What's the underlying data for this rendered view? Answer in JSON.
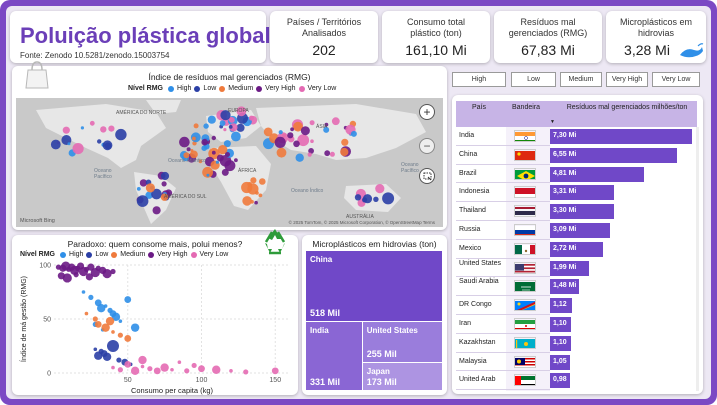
{
  "header": {
    "title": "Poluição plástica global",
    "source": "Fonte: Zenodo 10.5281/zenodo.15003754"
  },
  "kpis": [
    {
      "label": "Países / Territórios Analisados",
      "value": "202"
    },
    {
      "label": "Consumo total plástico (ton)",
      "value": "161,10 Mi"
    },
    {
      "label": "Resíduos mal gerenciados (RMG)",
      "value": "67,83 Mi"
    },
    {
      "label": "Microplásticos em hidrovias",
      "value": "3,28 Mi"
    }
  ],
  "colors": {
    "high": "#2f8fe8",
    "low": "#2b3fa6",
    "medium": "#ef7a3c",
    "very_high": "#6b1a85",
    "very_low": "#e46ab3",
    "accent": "#7b49c4",
    "bar": "#7048c8"
  },
  "map_panel": {
    "title": "Índice de resíduos mal gerenciados (RMG)",
    "legend_title": "Nível RMG",
    "legend": [
      "High",
      "Low",
      "Medium",
      "Very High",
      "Very Low"
    ],
    "labels": {
      "north_america": "AMÉRICA DO NORTE",
      "europe": "EUROPA",
      "asia": "ÁSIA",
      "africa": "ÁFRICA",
      "south_america": "AMÉRICA DO SUL",
      "australia": "AUSTRÁLIA",
      "atlantic": "Oceano Atlântico",
      "pacific_left": "Oceano Pacífico",
      "pacific_right": "Oceano Pacífico",
      "indian": "Oceano Índico"
    },
    "bing": "Microsoft Bing",
    "attribution": "© 2025 TomTom, © 2025 Microsoft Corporation, © OpenStreetMap Terms"
  },
  "filters": [
    "High",
    "Low",
    "Medium",
    "Very High",
    "Very Low"
  ],
  "table": {
    "headers": {
      "country": "País",
      "flag": "Bandeira",
      "value": "Resíduos mal gerenciados milhões/ton"
    },
    "sort_indicator": "▼",
    "rows": [
      {
        "country": "India",
        "value": "7,30 Mi",
        "num": 7.3,
        "flag": "in"
      },
      {
        "country": "China",
        "value": "6,55 Mi",
        "num": 6.55,
        "flag": "cn"
      },
      {
        "country": "Brazil",
        "value": "4,81 Mi",
        "num": 4.81,
        "flag": "br"
      },
      {
        "country": "Indonesia",
        "value": "3,31 Mi",
        "num": 3.31,
        "flag": "id"
      },
      {
        "country": "Thailand",
        "value": "3,30 Mi",
        "num": 3.3,
        "flag": "th"
      },
      {
        "country": "Russia",
        "value": "3,09 Mi",
        "num": 3.09,
        "flag": "ru"
      },
      {
        "country": "Mexico",
        "value": "2,72 Mi",
        "num": 2.72,
        "flag": "mx"
      },
      {
        "country": "United States",
        "value": "1,99 Mi",
        "num": 1.99,
        "flag": "us"
      },
      {
        "country": "Saudi Arabia",
        "value": "1,48 Mi",
        "num": 1.48,
        "flag": "sa"
      },
      {
        "country": "DR Congo",
        "value": "1,12",
        "num": 1.12,
        "flag": "cd"
      },
      {
        "country": "Iran",
        "value": "1,10",
        "num": 1.1,
        "flag": "ir"
      },
      {
        "country": "Kazakhstan",
        "value": "1,10",
        "num": 1.1,
        "flag": "kz"
      },
      {
        "country": "Malaysia",
        "value": "1,05",
        "num": 1.05,
        "flag": "my"
      },
      {
        "country": "United Arab",
        "value": "0,98",
        "num": 0.98,
        "flag": "ae"
      }
    ]
  },
  "scatter_panel": {
    "title": "Paradoxo: quem consome mais, polui menos?",
    "legend_title": "Nível RMG",
    "legend": [
      "High",
      "Low",
      "Medium",
      "Very High",
      "Very Low"
    ]
  },
  "chart_data": [
    {
      "type": "scatter",
      "title": "Paradoxo: quem consome mais, polui menos?",
      "xlabel": "Consumo per capita (kg)",
      "ylabel": "Índice de má gestão (RMG)",
      "xlim": [
        0,
        160
      ],
      "ylim": [
        0,
        100
      ],
      "xticks": [
        50,
        100,
        150
      ],
      "yticks": [
        0,
        50,
        100
      ],
      "series": [
        {
          "name": "Very High",
          "x": [
            3,
            6,
            8,
            10,
            12,
            14,
            16,
            18,
            20,
            22,
            25,
            28,
            30,
            33,
            36,
            40,
            5,
            9,
            15,
            24
          ],
          "y": [
            98,
            97,
            99,
            96,
            98,
            95,
            97,
            99,
            94,
            96,
            98,
            93,
            97,
            95,
            92,
            94,
            90,
            88,
            91,
            89
          ]
        },
        {
          "name": "High",
          "x": [
            20,
            25,
            30,
            32,
            35,
            38,
            40,
            42,
            45,
            28,
            50,
            55,
            33
          ],
          "y": [
            75,
            70,
            65,
            60,
            62,
            58,
            55,
            52,
            48,
            45,
            68,
            42,
            40
          ]
        },
        {
          "name": "Medium",
          "x": [
            22,
            28,
            30,
            35,
            40,
            45,
            50,
            38
          ],
          "y": [
            55,
            50,
            45,
            42,
            38,
            35,
            32,
            48
          ]
        },
        {
          "name": "Low",
          "x": [
            28,
            32,
            34,
            36,
            40,
            44,
            48,
            30,
            52
          ],
          "y": [
            22,
            20,
            18,
            15,
            25,
            12,
            10,
            16,
            8
          ]
        },
        {
          "name": "Very Low",
          "x": [
            40,
            45,
            50,
            55,
            60,
            65,
            70,
            75,
            80,
            90,
            100,
            110,
            120,
            130,
            150,
            60,
            85,
            95
          ],
          "y": [
            5,
            3,
            8,
            2,
            6,
            4,
            2,
            5,
            3,
            2,
            4,
            3,
            2,
            1,
            2,
            12,
            10,
            7
          ]
        }
      ]
    },
    {
      "type": "treemap",
      "title": "Microplásticos em hidrovias (ton)",
      "items": [
        {
          "name": "China",
          "value": 518,
          "label": "518 Mil"
        },
        {
          "name": "India",
          "value": 331,
          "label": "331 Mil"
        },
        {
          "name": "United States",
          "value": 255,
          "label": "255 Mil"
        },
        {
          "name": "Japan",
          "value": 173,
          "label": "173 Mil"
        }
      ]
    }
  ]
}
